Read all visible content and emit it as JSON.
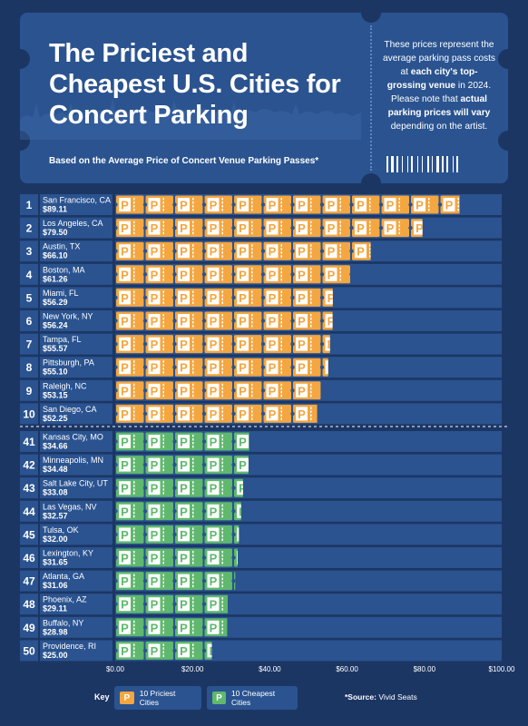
{
  "header": {
    "title": "The Priciest and Cheapest U.S. Cities for Concert Parking",
    "subtitle": "Based on the Average Price of Concert Venue Parking Passes*",
    "note_parts": [
      {
        "t": "These prices represent the average parking pass costs at ",
        "b": false
      },
      {
        "t": "each city's top-grossing venue",
        "b": true
      },
      {
        "t": " in 2024. Please note that ",
        "b": false
      },
      {
        "t": "actual parking prices will vary",
        "b": true
      },
      {
        "t": " depending on the artist.",
        "b": false
      }
    ]
  },
  "colors": {
    "background": "#1c3664",
    "track": "#2a5390",
    "priciest": "#f4a640",
    "cheapest": "#5fb86e",
    "label_box": "#2a5390"
  },
  "chart_data": {
    "type": "bar",
    "orientation": "horizontal",
    "xlim": [
      0,
      100
    ],
    "x_ticks": [
      "$0.00",
      "$20.00",
      "$40.00",
      "$60.00",
      "$80.00",
      "$100.00"
    ],
    "series": [
      {
        "name": "10 Priciest Cities",
        "rows": [
          {
            "rank": "1",
            "city": "San Francisco, CA",
            "price": "$89.11",
            "value": 89.11
          },
          {
            "rank": "2",
            "city": "Los Angeles, CA",
            "price": "$79.50",
            "value": 79.5
          },
          {
            "rank": "3",
            "city": "Austin, TX",
            "price": "$66.10",
            "value": 66.1
          },
          {
            "rank": "4",
            "city": "Boston, MA",
            "price": "$61.26",
            "value": 61.26
          },
          {
            "rank": "5",
            "city": "Miami, FL",
            "price": "$56.29",
            "value": 56.29
          },
          {
            "rank": "6",
            "city": "New York, NY",
            "price": "$56.24",
            "value": 56.24
          },
          {
            "rank": "7",
            "city": "Tampa, FL",
            "price": "$55.57",
            "value": 55.57
          },
          {
            "rank": "8",
            "city": "Pittsburgh, PA",
            "price": "$55.10",
            "value": 55.1
          },
          {
            "rank": "9",
            "city": "Raleigh, NC",
            "price": "$53.15",
            "value": 53.15
          },
          {
            "rank": "10",
            "city": "San Diego, CA",
            "price": "$52.25",
            "value": 52.25
          }
        ]
      },
      {
        "name": "10 Cheapest Cities",
        "rows": [
          {
            "rank": "41",
            "city": "Kansas City, MO",
            "price": "$34.66",
            "value": 34.66
          },
          {
            "rank": "42",
            "city": "Minneapolis, MN",
            "price": "$34.48",
            "value": 34.48
          },
          {
            "rank": "43",
            "city": "Salt Lake City, UT",
            "price": "$33.08",
            "value": 33.08
          },
          {
            "rank": "44",
            "city": "Las Vegas, NV",
            "price": "$32.57",
            "value": 32.57
          },
          {
            "rank": "45",
            "city": "Tulsa, OK",
            "price": "$32.00",
            "value": 32.0
          },
          {
            "rank": "46",
            "city": "Lexington, KY",
            "price": "$31.65",
            "value": 31.65
          },
          {
            "rank": "47",
            "city": "Atlanta, GA",
            "price": "$31.06",
            "value": 31.06
          },
          {
            "rank": "48",
            "city": "Phoenix, AZ",
            "price": "$29.11",
            "value": 29.11
          },
          {
            "rank": "49",
            "city": "Buffalo, NY",
            "price": "$28.98",
            "value": 28.98
          },
          {
            "rank": "50",
            "city": "Providence, RI",
            "price": "$25.00",
            "value": 25.0
          }
        ]
      }
    ]
  },
  "legend": {
    "key_label": "Key",
    "icon_letter": "P",
    "priciest_label": "10 Priciest Cities",
    "cheapest_label": "10 Cheapest Cities",
    "source_label": "*Source:",
    "source_value": " Vivid Seats"
  }
}
